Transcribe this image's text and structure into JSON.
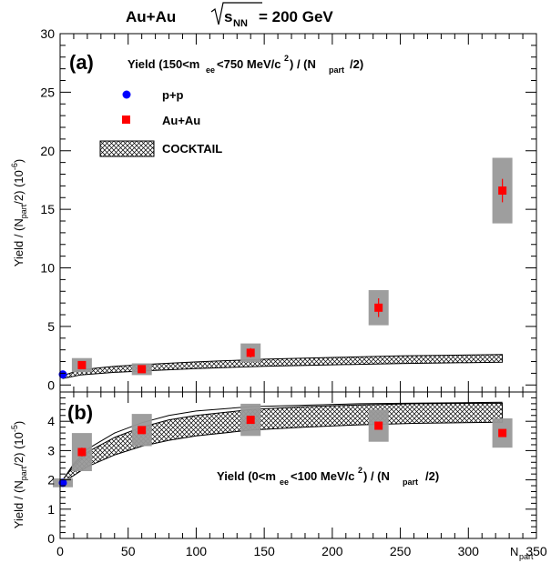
{
  "header": {
    "system": "Au+Au",
    "energy_prefix": "s",
    "energy_sub": "NN",
    "energy_value": "= 200 GeV"
  },
  "chart_data": [
    {
      "id": "a",
      "type": "scatter",
      "panel_label": "(a)",
      "annotation": {
        "p1": "Yield (150<m",
        "sub1": "ee",
        "p2": "<750 MeV/c",
        "sup1": "2",
        "p3": ") / (N",
        "sub2": "part",
        "p4": "/2)"
      },
      "ylabel": {
        "p1": "Yield / (N",
        "sub": "part",
        "p2": "/2) (10",
        "sup": "-6",
        "p3": ")"
      },
      "xlim": [
        0,
        350
      ],
      "ylim": [
        -0.6,
        30
      ],
      "yticks": [
        0,
        5,
        10,
        15,
        20,
        25,
        30
      ],
      "legend": {
        "placement": "top-left",
        "entries": [
          "p+p",
          "Au+Au",
          "COCKTAIL"
        ]
      },
      "series": [
        {
          "name": "p+p",
          "marker": "circle",
          "color": "#0000ff",
          "points": [
            {
              "x": 2,
              "y": 0.9,
              "yerr": 0.3,
              "syst": 0
            }
          ]
        },
        {
          "name": "Au+Au",
          "marker": "square",
          "color": "#ff0000",
          "points": [
            {
              "x": 16,
              "y": 1.7,
              "yerr": 0.2,
              "syst": 0.6
            },
            {
              "x": 60,
              "y": 1.35,
              "yerr": 0.2,
              "syst": 0.5
            },
            {
              "x": 140,
              "y": 2.75,
              "yerr": 0.4,
              "syst": 0.8
            },
            {
              "x": 234,
              "y": 6.6,
              "yerr": 0.8,
              "syst": 1.5
            },
            {
              "x": 325,
              "y": 16.6,
              "yerr": 1.0,
              "syst": 2.8
            }
          ]
        },
        {
          "name": "COCKTAIL",
          "type": "band",
          "x": [
            2,
            15,
            40,
            70,
            100,
            150,
            200,
            250,
            325
          ],
          "low": [
            0.55,
            0.85,
            1.08,
            1.25,
            1.4,
            1.6,
            1.72,
            1.82,
            1.95
          ],
          "high": [
            0.8,
            1.3,
            1.6,
            1.8,
            1.97,
            2.2,
            2.35,
            2.48,
            2.6
          ]
        }
      ]
    },
    {
      "id": "b",
      "type": "scatter",
      "panel_label": "(b)",
      "annotation": {
        "p1": "Yield (0<m",
        "sub1": "ee",
        "p2": "<100 MeV/c",
        "sup1": "2",
        "p3": ") / (N",
        "sub2": "part",
        "p4": "/2)"
      },
      "ylabel": {
        "p1": "Yield / (N",
        "sub": "part",
        "p2": "/2) (10",
        "sup": "-5",
        "p3": ")"
      },
      "xlabel": {
        "main": "N",
        "sub": "part"
      },
      "xlim": [
        0,
        350
      ],
      "ylim": [
        0,
        5
      ],
      "xticks": [
        0,
        50,
        100,
        150,
        200,
        250,
        300,
        350
      ],
      "yticks": [
        0,
        1,
        2,
        3,
        4
      ],
      "series": [
        {
          "name": "p+p",
          "marker": "circle",
          "color": "#0000ff",
          "points": [
            {
              "x": 2,
              "y": 1.9,
              "yerr": 0,
              "syst": 0.15
            }
          ]
        },
        {
          "name": "Au+Au",
          "marker": "square",
          "color": "#ff0000",
          "points": [
            {
              "x": 16,
              "y": 2.95,
              "yerr": 0.15,
              "syst": 0.65
            },
            {
              "x": 60,
              "y": 3.7,
              "yerr": 0.1,
              "syst": 0.55
            },
            {
              "x": 140,
              "y": 4.05,
              "yerr": 0.1,
              "syst": 0.55
            },
            {
              "x": 234,
              "y": 3.85,
              "yerr": 0.1,
              "syst": 0.55
            },
            {
              "x": 325,
              "y": 3.6,
              "yerr": 0.1,
              "syst": 0.5
            }
          ]
        },
        {
          "name": "COCKTAIL",
          "type": "band",
          "x": [
            2,
            10,
            20,
            40,
            60,
            80,
            100,
            140,
            180,
            220,
            260,
            325
          ],
          "low": [
            1.9,
            2.15,
            2.45,
            2.85,
            3.15,
            3.35,
            3.5,
            3.7,
            3.8,
            3.88,
            3.93,
            3.97
          ],
          "high": [
            2.0,
            2.5,
            2.95,
            3.45,
            3.8,
            4.05,
            4.2,
            4.4,
            4.5,
            4.56,
            4.6,
            4.62
          ],
          "upper_line": [
            2.0,
            2.55,
            3.05,
            3.6,
            3.95,
            4.2,
            4.35,
            4.5,
            4.55,
            4.6,
            4.62,
            4.65
          ]
        }
      ]
    }
  ]
}
